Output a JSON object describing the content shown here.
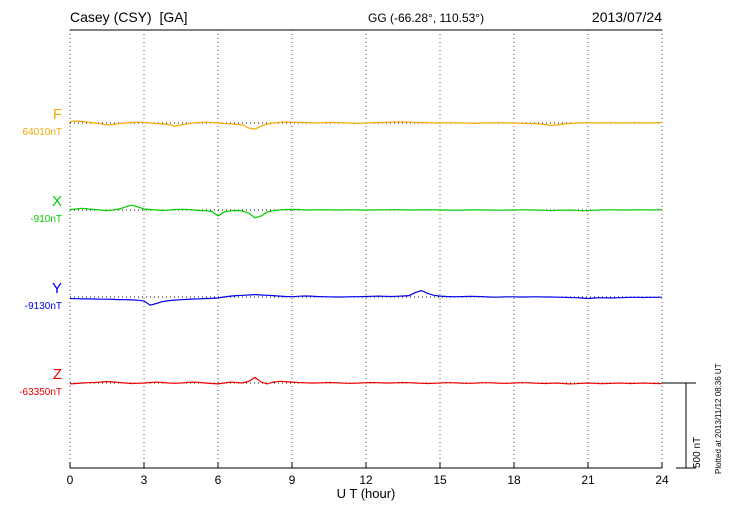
{
  "header": {
    "station_title": "Casey (CSY)  [GA]",
    "coords": "GG (-66.28°, 110.53°)",
    "date": "2013/07/24"
  },
  "axis": {
    "xlabel": "U T (hour)",
    "x_ticks": [
      0,
      3,
      6,
      9,
      12,
      15,
      18,
      21,
      24
    ]
  },
  "scale_bar": {
    "label": "500 nT",
    "nT": 500
  },
  "footer_note": "Plotted at 2013/11/12 08:36 UT",
  "traces": [
    {
      "label": "F",
      "baseline_label": "64010nT",
      "color": "#f5a800"
    },
    {
      "label": "X",
      "baseline_label": "-910nT",
      "color": "#00cc00"
    },
    {
      "label": "Y",
      "baseline_label": "-9130nT",
      "color": "#0000ee"
    },
    {
      "label": "Z",
      "baseline_label": "-63350nT",
      "color": "#ee0000"
    }
  ],
  "chart_data": {
    "type": "line",
    "title": "Casey (CSY) [GA] magnetogram 2013/07/24",
    "xlabel": "U T (hour)",
    "x_range": [
      0,
      24
    ],
    "x_step_hours": 0.25,
    "x_ticks": [
      0,
      3,
      6,
      9,
      12,
      15,
      18,
      21,
      24
    ],
    "grid": "dotted-vertical-at-ticks, dotted-baseline-per-trace",
    "legend_position": "left-of-plot",
    "scale_bar_nT": 500,
    "series": [
      {
        "name": "F",
        "baseline_nT": 64010,
        "color": "#f5a800",
        "offsets_nT": [
          8,
          12,
          9,
          5,
          0,
          -5,
          -12,
          -9,
          -3,
          0,
          3,
          5,
          3,
          0,
          -3,
          -6,
          -9,
          -18,
          -12,
          -5,
          0,
          3,
          5,
          3,
          0,
          -3,
          -5,
          -8,
          -12,
          -30,
          -36,
          -18,
          -6,
          0,
          5,
          6,
          5,
          3,
          3,
          2,
          0,
          2,
          3,
          3,
          2,
          0,
          -2,
          -2,
          0,
          2,
          3,
          3,
          5,
          6,
          6,
          5,
          3,
          3,
          2,
          0,
          0,
          2,
          2,
          0,
          0,
          -2,
          -2,
          0,
          0,
          2,
          2,
          0,
          0,
          -2,
          -3,
          -3,
          -5,
          -9,
          -14,
          -11,
          -6,
          -3,
          0,
          2,
          2,
          0,
          0,
          2,
          2,
          0,
          0,
          2,
          2,
          0,
          0,
          2,
          3
        ]
      },
      {
        "name": "X",
        "baseline_nT": -910,
        "color": "#00cc00",
        "offsets_nT": [
          3,
          6,
          10,
          6,
          3,
          0,
          -4,
          0,
          6,
          18,
          29,
          18,
          6,
          3,
          0,
          -3,
          0,
          3,
          4,
          3,
          0,
          -3,
          -5,
          -9,
          -35,
          -12,
          -5,
          -3,
          -6,
          -18,
          -45,
          -35,
          -12,
          -4,
          0,
          3,
          4,
          3,
          0,
          0,
          1,
          2,
          1,
          0,
          0,
          1,
          1,
          0,
          0,
          0,
          1,
          1,
          2,
          2,
          1,
          0,
          0,
          1,
          2,
          1,
          0,
          0,
          -1,
          -1,
          0,
          0,
          1,
          0,
          0,
          -1,
          -1,
          0,
          0,
          1,
          1,
          0,
          0,
          -2,
          -4,
          -2,
          -1,
          0,
          -2,
          -5,
          -4,
          -1,
          0,
          1,
          1,
          0,
          0,
          0,
          1,
          1,
          0,
          1,
          2
        ]
      },
      {
        "name": "Y",
        "baseline_nT": -9130,
        "color": "#0000ee",
        "offsets_nT": [
          -9,
          -10,
          -11,
          -11,
          -12,
          -13,
          -13,
          -14,
          -15,
          -16,
          -17,
          -19,
          -23,
          -48,
          -38,
          -27,
          -21,
          -18,
          -16,
          -14,
          -12,
          -11,
          -9,
          -8,
          -5,
          0,
          5,
          8,
          10,
          12,
          14,
          12,
          10,
          8,
          5,
          3,
          2,
          4,
          6,
          5,
          3,
          2,
          1,
          0,
          0,
          1,
          2,
          2,
          3,
          4,
          5,
          4,
          3,
          4,
          6,
          8,
          26,
          38,
          21,
          10,
          5,
          3,
          2,
          2,
          3,
          4,
          3,
          2,
          0,
          -1,
          0,
          1,
          1,
          0,
          0,
          1,
          1,
          0,
          0,
          -1,
          -2,
          -3,
          -4,
          -6,
          -9,
          -6,
          -4,
          -5,
          -6,
          -4,
          -3,
          -2,
          -2,
          -3,
          -2,
          -2,
          -1
        ]
      },
      {
        "name": "Z",
        "baseline_nT": -63350,
        "color": "#ee0000",
        "offsets_nT": [
          -5,
          -3,
          0,
          2,
          3,
          5,
          9,
          6,
          3,
          0,
          -3,
          -2,
          0,
          3,
          5,
          3,
          0,
          -2,
          0,
          3,
          5,
          3,
          0,
          -3,
          -5,
          0,
          5,
          3,
          0,
          10,
          33,
          5,
          -5,
          5,
          10,
          8,
          5,
          3,
          2,
          0,
          0,
          2,
          3,
          2,
          0,
          -2,
          -2,
          0,
          2,
          3,
          2,
          0,
          0,
          2,
          3,
          2,
          0,
          -2,
          -3,
          -2,
          0,
          2,
          2,
          0,
          -2,
          -2,
          0,
          2,
          2,
          0,
          -2,
          -2,
          0,
          2,
          2,
          0,
          -2,
          -3,
          -2,
          0,
          -3,
          -5,
          -4,
          -2,
          0,
          -2,
          -4,
          -3,
          -2,
          0,
          -2,
          -3,
          -2,
          0,
          -2,
          -3,
          -4
        ]
      }
    ]
  }
}
